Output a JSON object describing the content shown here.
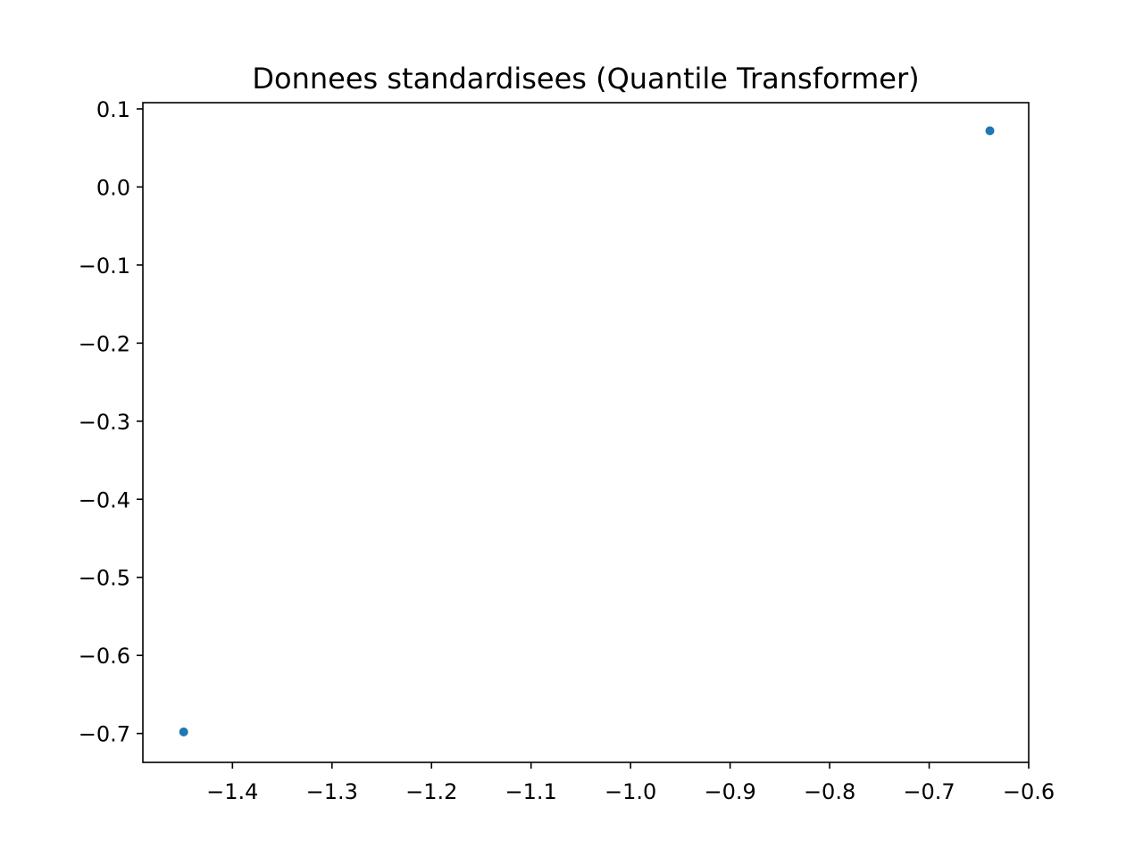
{
  "chart_data": {
    "type": "scatter",
    "title": "Donnees standardisees (Quantile Transformer)",
    "xlabel": "",
    "ylabel": "",
    "xlim": [
      -1.49,
      -0.6
    ],
    "ylim": [
      -0.737,
      0.108
    ],
    "x_ticks": [
      {
        "value": -1.4,
        "label": "−1.4"
      },
      {
        "value": -1.3,
        "label": "−1.3"
      },
      {
        "value": -1.2,
        "label": "−1.2"
      },
      {
        "value": -1.1,
        "label": "−1.1"
      },
      {
        "value": -1.0,
        "label": "−1.0"
      },
      {
        "value": -0.9,
        "label": "−0.9"
      },
      {
        "value": -0.8,
        "label": "−0.8"
      },
      {
        "value": -0.7,
        "label": "−0.7"
      },
      {
        "value": -0.6,
        "label": "−0.6"
      }
    ],
    "y_ticks": [
      {
        "value": 0.1,
        "label": "0.1"
      },
      {
        "value": 0.0,
        "label": "0.0"
      },
      {
        "value": -0.1,
        "label": "−0.1"
      },
      {
        "value": -0.2,
        "label": "−0.2"
      },
      {
        "value": -0.3,
        "label": "−0.3"
      },
      {
        "value": -0.4,
        "label": "−0.4"
      },
      {
        "value": -0.5,
        "label": "−0.5"
      },
      {
        "value": -0.6,
        "label": "−0.6"
      },
      {
        "value": -0.7,
        "label": "−0.7"
      }
    ],
    "grid": false,
    "legend": "none",
    "series": [
      {
        "color": "#1f77b4",
        "points": [
          {
            "x": -1.449,
            "y": -0.698
          },
          {
            "x": -0.639,
            "y": 0.072
          }
        ]
      }
    ]
  }
}
